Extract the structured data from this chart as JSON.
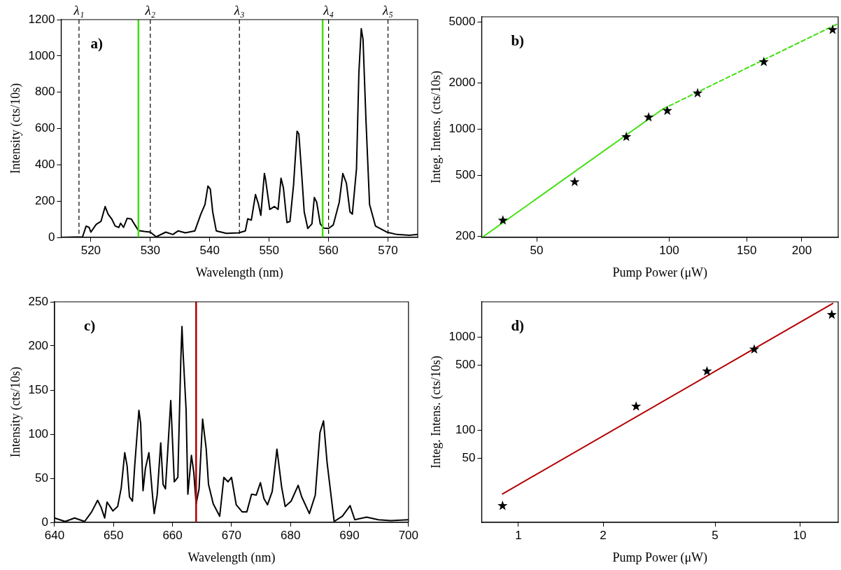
{
  "chart_data": [
    {
      "type": "line",
      "xlabel": "Wavelength (nm)",
      "ylabel": "Intensity (cts/10s)",
      "annotations": [
        "a)"
      ],
      "xlim": [
        515,
        575
      ],
      "ylim": [
        0,
        1200
      ],
      "xticks": [
        520,
        530,
        540,
        550,
        560,
        570
      ],
      "yticks": [
        0,
        200,
        400,
        600,
        800,
        1000,
        1200
      ],
      "grid": false,
      "legend": false,
      "marker": "none",
      "series": [
        {
          "color": "#000000",
          "x": [
            515,
            518.6,
            519.2,
            519.7,
            520,
            520.9,
            521.7,
            522.4,
            522.9,
            523.5,
            524.1,
            524.7,
            525,
            525.5,
            526.1,
            526.8,
            527.4,
            528,
            529,
            530,
            531,
            532.6,
            533.8,
            534.7,
            535.9,
            537.5,
            538.5,
            539.2,
            539.7,
            540.1,
            540.5,
            541.1,
            542.8,
            544.9,
            546,
            546.4,
            547,
            547.7,
            548.2,
            548.6,
            549.2,
            549.4,
            550.1,
            550.9,
            551.5,
            552,
            552.4,
            553,
            553.5,
            554.1,
            554.7,
            555,
            555.5,
            555.9,
            556.5,
            557.2,
            557.6,
            558,
            558.6,
            559.2,
            560,
            560.8,
            561.8,
            562.4,
            563,
            563.6,
            564,
            564.7,
            565.1,
            565.5,
            565.8,
            566.3,
            566.9,
            567.9,
            569.8,
            571.5,
            573.6,
            575
          ],
          "values": [
            0,
            3,
            62,
            55,
            29,
            72,
            88,
            170,
            128,
            102,
            62,
            55,
            78,
            55,
            105,
            101,
            69,
            38,
            33,
            29,
            3,
            29,
            16,
            36,
            25,
            36,
            128,
            181,
            283,
            266,
            141,
            36,
            22,
            25,
            36,
            102,
            95,
            236,
            183,
            121,
            352,
            319,
            154,
            170,
            154,
            326,
            273,
            82,
            88,
            286,
            585,
            570,
            339,
            141,
            49,
            75,
            220,
            194,
            75,
            51,
            49,
            69,
            194,
            352,
            299,
            141,
            128,
            378,
            906,
            1150,
            1090,
            642,
            181,
            62,
            29,
            16,
            12,
            16
          ]
        }
      ],
      "ref_lines": [
        {
          "axis": "x",
          "value": 518,
          "label": "λ₁",
          "color": "#000000",
          "line_style": "dashed"
        },
        {
          "axis": "x",
          "value": 530,
          "label": "λ₂",
          "color": "#000000",
          "line_style": "dashed"
        },
        {
          "axis": "x",
          "value": 545,
          "label": "λ₃",
          "color": "#000000",
          "line_style": "dashed"
        },
        {
          "axis": "x",
          "value": 560,
          "label": "λ₄",
          "color": "#000000",
          "line_style": "dashed"
        },
        {
          "axis": "x",
          "value": 570,
          "label": "λ₅",
          "color": "#000000",
          "line_style": "dashed"
        },
        {
          "axis": "x",
          "value": 528,
          "color": "#40e010",
          "line_style": "solid"
        },
        {
          "axis": "x",
          "value": 559,
          "color": "#40e010",
          "line_style": "solid"
        }
      ]
    },
    {
      "type": "scatter",
      "xlabel": "Pump Power (μW)",
      "ylabel": "Integ. Intens. (cts/10s)",
      "annotations": [
        "b)"
      ],
      "log": "xy",
      "xlim": [
        37.5,
        242
      ],
      "ylim": [
        196,
        5400
      ],
      "xticks": [
        50,
        100,
        150,
        200
      ],
      "yticks": [
        200,
        500,
        1000,
        2000,
        5000
      ],
      "grid": false,
      "legend": false,
      "series": [
        {
          "type": "scatter",
          "marker": "star",
          "color": "#000000",
          "x": [
            41.9,
            61,
            79.9,
            89.8,
            99,
            116,
            164,
            235
          ],
          "values": [
            253,
            451,
            888,
            1192,
            1315,
            1712,
            2740,
            4440
          ]
        },
        {
          "type": "line",
          "marker": "none",
          "line_style": "solid",
          "color": "#40e010",
          "x": [
            37.6,
            96.8
          ],
          "values": [
            196,
            1352
          ]
        },
        {
          "type": "line",
          "marker": "none",
          "line_style": "dashed",
          "color": "#40e010",
          "x": [
            96.8,
            241
          ],
          "values": [
            1352,
            4850
          ]
        }
      ]
    },
    {
      "type": "line",
      "xlabel": "Wavelength (nm)",
      "ylabel": "Intensity (cts/10s)",
      "annotations": [
        "c)"
      ],
      "xlim": [
        640,
        700
      ],
      "ylim": [
        0,
        250
      ],
      "xticks": [
        640,
        650,
        660,
        670,
        680,
        690,
        700
      ],
      "yticks": [
        0,
        50,
        100,
        150,
        200,
        250
      ],
      "grid": false,
      "legend": false,
      "marker": "none",
      "series": [
        {
          "color": "#000000",
          "x": [
            640,
            641.8,
            643.4,
            645.1,
            646.3,
            647.3,
            647.9,
            648.5,
            648.9,
            649.9,
            650.7,
            651.3,
            651.9,
            652.3,
            652.7,
            653.2,
            653.6,
            654.3,
            654.6,
            655,
            655.4,
            656,
            656.6,
            656.9,
            657.4,
            658,
            658.4,
            658.8,
            659.7,
            660.3,
            660.9,
            661.4,
            661.6,
            661.8,
            662.3,
            662.6,
            663.2,
            663.6,
            664,
            664.5,
            665.1,
            665.7,
            666.1,
            666.9,
            668,
            668.7,
            669.4,
            670,
            670.8,
            671.8,
            672.6,
            673.4,
            674.2,
            674.9,
            675.5,
            676.1,
            676.9,
            677.7,
            678.5,
            679.1,
            680.1,
            681.3,
            681.9,
            683.2,
            684.2,
            685,
            685.6,
            686.2,
            687.4,
            688.8,
            690.1,
            690.9,
            692.9,
            694.9,
            697,
            700
          ],
          "values": [
            5,
            1,
            5,
            1,
            12,
            25,
            17,
            5,
            23,
            13,
            18,
            39,
            79,
            64,
            29,
            24,
            65,
            127,
            112,
            36,
            61,
            79,
            31,
            10,
            31,
            90,
            43,
            38,
            138,
            46,
            51,
            183,
            222,
            191,
            128,
            32,
            76,
            57,
            21,
            38,
            117,
            84,
            43,
            21,
            7,
            51,
            46,
            51,
            20,
            12,
            12,
            32,
            31,
            45,
            27,
            20,
            35,
            83,
            40,
            18,
            24,
            42,
            29,
            10,
            31,
            102,
            115,
            68,
            1,
            7,
            19,
            3,
            6,
            3,
            2,
            3
          ]
        }
      ],
      "ref_lines": [
        {
          "axis": "x",
          "value": 664,
          "color": "#b20000",
          "line_style": "solid"
        }
      ]
    },
    {
      "type": "scatter",
      "xlabel": "Pump Power (μW)",
      "ylabel": "Integ. Intens. (cts/10s)",
      "annotations": [
        "d)"
      ],
      "log": "xy",
      "xlim": [
        0.74,
        13.7
      ],
      "ylim": [
        10.3,
        2380
      ],
      "xticks": [
        1,
        2,
        5,
        10
      ],
      "yticks": [
        50,
        100,
        500,
        1000
      ],
      "grid": false,
      "legend": false,
      "series": [
        {
          "type": "scatter",
          "marker": "star",
          "color": "#000000",
          "x": [
            0.878,
            2.62,
            4.68,
            6.89,
            13.0
          ],
          "values": [
            15.5,
            180,
            429,
            736,
            1729
          ]
        },
        {
          "type": "line",
          "marker": "none",
          "line_style": "solid",
          "color": "#b20000",
          "x": [
            0.878,
            13.1
          ],
          "values": [
            20.8,
            2288
          ]
        }
      ]
    }
  ]
}
